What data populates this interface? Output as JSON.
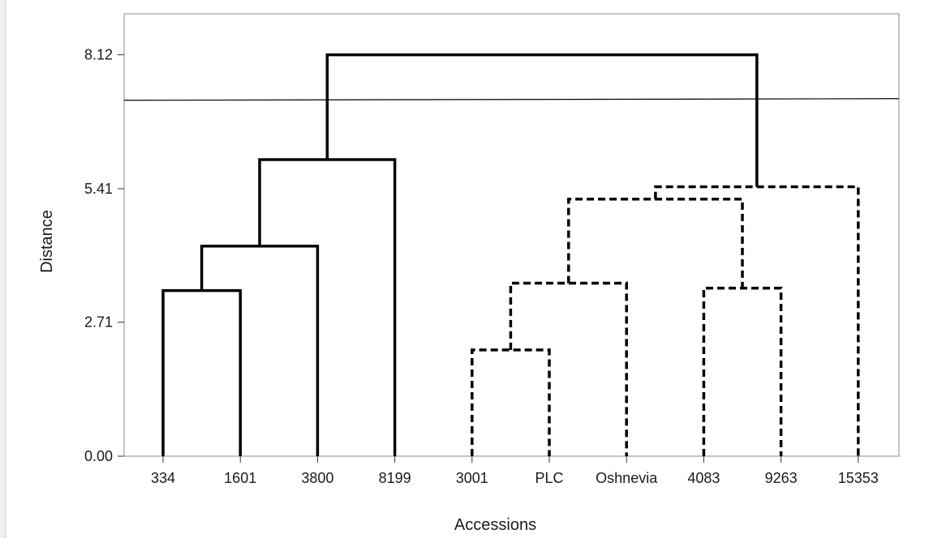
{
  "chart_data": {
    "type": "dendrogram",
    "title": "",
    "xlabel": "Accessions",
    "ylabel": "Distance",
    "ylim": [
      0,
      8.95
    ],
    "yticks": [
      "0.00",
      "2.71",
      "5.41",
      "8.12"
    ],
    "ytick_values": [
      0.0,
      2.71,
      5.41,
      8.12
    ],
    "leaves": [
      "334",
      "1601",
      "3800",
      "8199",
      "3001",
      "PLC",
      "Oshnevia",
      "4083",
      "9263",
      "15353"
    ],
    "cut_line_distance": 7.2,
    "cluster_styles": {
      "group_1": "solid",
      "group_2": "dashed"
    },
    "line_color": "#000000",
    "background_color": "#ffffff",
    "frame_color": "#f0f0f0",
    "merges": [
      {
        "left": "334",
        "right": "1601",
        "height": 3.35,
        "style": "solid"
      },
      {
        "left": "334+1601",
        "right": "3800",
        "height": 4.25,
        "style": "solid"
      },
      {
        "left": "334+1601+3800",
        "right": "8199",
        "height": 6.0,
        "style": "solid"
      },
      {
        "left": "3001",
        "right": "PLC",
        "height": 2.15,
        "style": "dashed"
      },
      {
        "left": "3001+PLC",
        "right": "Oshnevia",
        "height": 3.5,
        "style": "dashed"
      },
      {
        "left": "4083",
        "right": "9263",
        "height": 3.4,
        "style": "dashed"
      },
      {
        "left": "3001+PLC+Oshnevia",
        "right": "4083+9263",
        "height": 5.2,
        "style": "dashed"
      },
      {
        "left": "3001+PLC+Oshnevia+4083+9263",
        "right": "15353",
        "height": 5.45,
        "style": "dashed"
      },
      {
        "left": "334+1601+3800+8199",
        "right": "3001+PLC+Oshnevia+4083+9263+15353",
        "height": 8.12,
        "style": "solid"
      }
    ]
  }
}
